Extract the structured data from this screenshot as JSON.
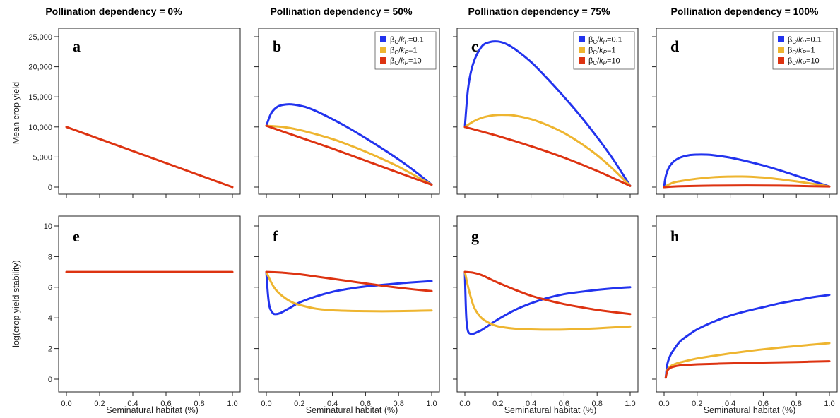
{
  "column_titles": [
    "Pollination dependency = 0%",
    "Pollination dependency = 50%",
    "Pollination dependency = 75%",
    "Pollination dependency = 100%"
  ],
  "legend": {
    "entries": [
      {
        "greek": "β",
        "sub1": "C",
        "slash": "/",
        "k": "k",
        "sub2": "P",
        "value": "=0.1",
        "color": "#2233ee"
      },
      {
        "greek": "β",
        "sub1": "C",
        "slash": "/",
        "k": "k",
        "sub2": "P",
        "value": "=1",
        "color": "#eeb530"
      },
      {
        "greek": "β",
        "sub1": "C",
        "slash": "/",
        "k": "k",
        "sub2": "P",
        "value": "=10",
        "color": "#dd3311"
      }
    ]
  },
  "rows": [
    {
      "ylabel": "Mean crop yield",
      "ylim": [
        0,
        25000
      ],
      "yticks": [
        0,
        5000,
        10000,
        15000,
        20000,
        25000
      ],
      "ytick_labels": [
        "0",
        "5,000",
        "10,000",
        "15,000",
        "20,000",
        "25,000"
      ]
    },
    {
      "ylabel": "log(crop yield stability)",
      "ylim": [
        0,
        10
      ],
      "yticks": [
        0,
        2,
        4,
        6,
        8,
        10
      ],
      "ytick_labels": [
        "0",
        "2",
        "4",
        "6",
        "8",
        "10"
      ]
    }
  ],
  "xlabel": "Seminatural habitat (%)",
  "xlim": [
    0,
    1
  ],
  "xticks": [
    0,
    0.2,
    0.4,
    0.6,
    0.8,
    1.0
  ],
  "xtick_labels": [
    "0.0",
    "0.2",
    "0.4",
    "0.6",
    "0.8",
    "1.0"
  ],
  "chart_data": [
    {
      "panel": "a",
      "type": "line",
      "row": 0,
      "col": 0,
      "legend": false,
      "series": [
        {
          "color": "#dd3311",
          "x": [
            0,
            1
          ],
          "y": [
            10000,
            0
          ]
        }
      ]
    },
    {
      "panel": "b",
      "type": "line",
      "row": 0,
      "col": 1,
      "legend": true,
      "series": [
        {
          "color": "#2233ee",
          "x": [
            0,
            0.03,
            0.07,
            0.12,
            0.17,
            0.25,
            0.35,
            0.5,
            0.65,
            0.8,
            0.9,
            1.0
          ],
          "y": [
            10200,
            12300,
            13400,
            13750,
            13700,
            13200,
            12000,
            9800,
            7300,
            4600,
            2600,
            400
          ]
        },
        {
          "color": "#eeb530",
          "x": [
            0,
            0.1,
            0.2,
            0.3,
            0.4,
            0.5,
            0.6,
            0.7,
            0.8,
            0.9,
            1.0
          ],
          "y": [
            10200,
            10000,
            9500,
            8800,
            8000,
            7000,
            5900,
            4700,
            3400,
            1900,
            400
          ]
        },
        {
          "color": "#dd3311",
          "x": [
            0,
            0.2,
            0.4,
            0.6,
            0.8,
            1.0
          ],
          "y": [
            10200,
            8300,
            6400,
            4400,
            2400,
            400
          ]
        }
      ]
    },
    {
      "panel": "c",
      "type": "line",
      "row": 0,
      "col": 2,
      "legend": true,
      "series": [
        {
          "color": "#2233ee",
          "x": [
            0,
            0.02,
            0.05,
            0.1,
            0.15,
            0.2,
            0.25,
            0.3,
            0.4,
            0.5,
            0.6,
            0.7,
            0.8,
            0.9,
            1.0
          ],
          "y": [
            10000,
            16500,
            20500,
            23300,
            24100,
            24200,
            23800,
            23000,
            20800,
            18000,
            15000,
            11800,
            8300,
            4500,
            200
          ]
        },
        {
          "color": "#eeb530",
          "x": [
            0,
            0.05,
            0.1,
            0.15,
            0.2,
            0.25,
            0.3,
            0.4,
            0.5,
            0.6,
            0.7,
            0.8,
            0.9,
            1.0
          ],
          "y": [
            10000,
            10900,
            11500,
            11850,
            12000,
            12000,
            11900,
            11300,
            10300,
            9000,
            7300,
            5300,
            2900,
            200
          ]
        },
        {
          "color": "#dd3311",
          "x": [
            0,
            0.2,
            0.4,
            0.6,
            0.8,
            1.0
          ],
          "y": [
            10000,
            8500,
            6800,
            4900,
            2700,
            200
          ]
        }
      ]
    },
    {
      "panel": "d",
      "type": "line",
      "row": 0,
      "col": 3,
      "legend": true,
      "series": [
        {
          "color": "#2233ee",
          "x": [
            0,
            0.01,
            0.03,
            0.06,
            0.1,
            0.15,
            0.2,
            0.25,
            0.3,
            0.4,
            0.5,
            0.6,
            0.7,
            0.8,
            0.9,
            1.0
          ],
          "y": [
            0,
            1800,
            3300,
            4300,
            4950,
            5300,
            5400,
            5400,
            5300,
            4900,
            4300,
            3600,
            2800,
            1900,
            1000,
            100
          ]
        },
        {
          "color": "#eeb530",
          "x": [
            0,
            0.05,
            0.1,
            0.2,
            0.3,
            0.4,
            0.45,
            0.5,
            0.6,
            0.7,
            0.8,
            0.9,
            1.0
          ],
          "y": [
            0,
            700,
            1000,
            1400,
            1650,
            1750,
            1760,
            1750,
            1600,
            1300,
            950,
            550,
            100
          ]
        },
        {
          "color": "#dd3311",
          "x": [
            0,
            0.1,
            0.3,
            0.5,
            0.7,
            0.9,
            1.0
          ],
          "y": [
            0,
            150,
            250,
            280,
            250,
            150,
            100
          ]
        }
      ]
    },
    {
      "panel": "e",
      "type": "line",
      "row": 1,
      "col": 0,
      "legend": false,
      "series": [
        {
          "color": "#dd3311",
          "x": [
            0,
            1
          ],
          "y": [
            7,
            7
          ]
        }
      ]
    },
    {
      "panel": "f",
      "type": "line",
      "row": 1,
      "col": 1,
      "legend": false,
      "series": [
        {
          "color": "#2233ee",
          "x": [
            0,
            0.01,
            0.02,
            0.04,
            0.06,
            0.08,
            0.1,
            0.15,
            0.2,
            0.3,
            0.4,
            0.5,
            0.6,
            0.7,
            0.8,
            0.9,
            1.0
          ],
          "y": [
            7,
            5.5,
            4.7,
            4.3,
            4.25,
            4.3,
            4.4,
            4.7,
            5.0,
            5.4,
            5.7,
            5.9,
            6.05,
            6.15,
            6.25,
            6.33,
            6.4
          ]
        },
        {
          "color": "#eeb530",
          "x": [
            0,
            0.03,
            0.06,
            0.1,
            0.15,
            0.2,
            0.3,
            0.4,
            0.5,
            0.6,
            0.7,
            0.8,
            0.9,
            1.0
          ],
          "y": [
            7,
            6.3,
            5.8,
            5.4,
            5.05,
            4.85,
            4.6,
            4.5,
            4.46,
            4.44,
            4.43,
            4.44,
            4.46,
            4.48
          ]
        },
        {
          "color": "#dd3311",
          "x": [
            0,
            0.05,
            0.1,
            0.2,
            0.3,
            0.4,
            0.5,
            0.6,
            0.7,
            0.8,
            0.9,
            1.0
          ],
          "y": [
            7,
            6.98,
            6.95,
            6.85,
            6.7,
            6.55,
            6.4,
            6.25,
            6.1,
            5.97,
            5.85,
            5.75
          ]
        }
      ]
    },
    {
      "panel": "g",
      "type": "line",
      "row": 1,
      "col": 2,
      "legend": false,
      "series": [
        {
          "color": "#2233ee",
          "x": [
            0,
            0.005,
            0.01,
            0.02,
            0.04,
            0.06,
            0.08,
            0.1,
            0.15,
            0.2,
            0.3,
            0.4,
            0.5,
            0.6,
            0.7,
            0.8,
            0.9,
            1.0
          ],
          "y": [
            7,
            5.0,
            3.8,
            3.1,
            2.95,
            3.0,
            3.1,
            3.2,
            3.55,
            3.9,
            4.5,
            4.95,
            5.3,
            5.55,
            5.7,
            5.83,
            5.93,
            6.0
          ]
        },
        {
          "color": "#eeb530",
          "x": [
            0,
            0.02,
            0.04,
            0.06,
            0.1,
            0.15,
            0.2,
            0.3,
            0.4,
            0.5,
            0.6,
            0.7,
            0.8,
            0.9,
            1.0
          ],
          "y": [
            7,
            6.0,
            5.2,
            4.6,
            4.0,
            3.65,
            3.45,
            3.3,
            3.25,
            3.23,
            3.24,
            3.27,
            3.32,
            3.38,
            3.44
          ]
        },
        {
          "color": "#dd3311",
          "x": [
            0,
            0.05,
            0.1,
            0.15,
            0.2,
            0.3,
            0.4,
            0.5,
            0.6,
            0.7,
            0.8,
            0.9,
            1.0
          ],
          "y": [
            7,
            6.95,
            6.8,
            6.55,
            6.3,
            5.85,
            5.45,
            5.15,
            4.9,
            4.7,
            4.52,
            4.38,
            4.25
          ]
        }
      ]
    },
    {
      "panel": "h",
      "type": "line",
      "row": 1,
      "col": 3,
      "legend": false,
      "series": [
        {
          "color": "#2233ee",
          "x": [
            0.01,
            0.02,
            0.04,
            0.07,
            0.1,
            0.15,
            0.2,
            0.3,
            0.4,
            0.5,
            0.6,
            0.7,
            0.8,
            0.9,
            1.0
          ],
          "y": [
            0.1,
            1.0,
            1.6,
            2.1,
            2.5,
            2.9,
            3.25,
            3.75,
            4.15,
            4.45,
            4.7,
            4.95,
            5.15,
            5.35,
            5.5
          ]
        },
        {
          "color": "#eeb530",
          "x": [
            0.01,
            0.02,
            0.04,
            0.07,
            0.1,
            0.2,
            0.3,
            0.4,
            0.5,
            0.6,
            0.7,
            0.8,
            0.9,
            1.0
          ],
          "y": [
            0.1,
            0.6,
            0.85,
            1.0,
            1.1,
            1.35,
            1.52,
            1.68,
            1.82,
            1.95,
            2.06,
            2.16,
            2.26,
            2.35
          ]
        },
        {
          "color": "#dd3311",
          "x": [
            0.01,
            0.02,
            0.04,
            0.07,
            0.1,
            0.2,
            0.4,
            0.6,
            0.8,
            1.0
          ],
          "y": [
            0.1,
            0.55,
            0.75,
            0.85,
            0.9,
            0.97,
            1.03,
            1.08,
            1.12,
            1.17
          ]
        }
      ]
    }
  ]
}
